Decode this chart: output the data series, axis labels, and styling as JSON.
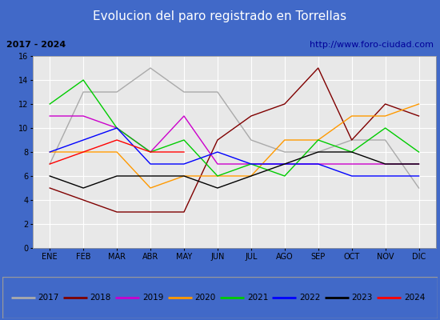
{
  "title": "Evolucion del paro registrado en Torrellas",
  "subtitle_left": "2017 - 2024",
  "subtitle_right": "http://www.foro-ciudad.com",
  "months": [
    "ENE",
    "FEB",
    "MAR",
    "ABR",
    "MAY",
    "JUN",
    "JUL",
    "AGO",
    "SEP",
    "OCT",
    "NOV",
    "DIC"
  ],
  "ylim": [
    0,
    16
  ],
  "yticks": [
    0,
    2,
    4,
    6,
    8,
    10,
    12,
    14,
    16
  ],
  "series": {
    "2017": {
      "color": "#aaaaaa",
      "values": [
        7,
        13,
        13,
        15,
        13,
        13,
        9,
        8,
        8,
        9,
        9,
        5
      ]
    },
    "2018": {
      "color": "#800000",
      "values": [
        5,
        4,
        3,
        3,
        3,
        9,
        11,
        12,
        15,
        9,
        12,
        11
      ]
    },
    "2019": {
      "color": "#cc00cc",
      "values": [
        11,
        11,
        10,
        8,
        11,
        7,
        7,
        7,
        7,
        7,
        7,
        7
      ]
    },
    "2020": {
      "color": "#ff9900",
      "values": [
        8,
        8,
        8,
        5,
        6,
        6,
        6,
        9,
        9,
        11,
        11,
        12
      ]
    },
    "2021": {
      "color": "#00cc00",
      "values": [
        12,
        14,
        10,
        8,
        9,
        6,
        7,
        6,
        9,
        8,
        10,
        8
      ]
    },
    "2022": {
      "color": "#0000ff",
      "values": [
        8,
        9,
        10,
        7,
        7,
        8,
        7,
        7,
        7,
        6,
        6,
        6
      ]
    },
    "2023": {
      "color": "#000000",
      "values": [
        6,
        5,
        6,
        6,
        6,
        5,
        6,
        7,
        8,
        8,
        7,
        7
      ]
    },
    "2024": {
      "color": "#ff0000",
      "values": [
        7,
        8,
        9,
        8,
        8,
        null,
        null,
        null,
        null,
        null,
        null,
        null
      ]
    }
  },
  "title_bg_color": "#4169c8",
  "title_text_color": "#ffffff",
  "subtitle_bg_color": "#d8d8d8",
  "plot_bg_color": "#e8e8e8",
  "legend_bg_color": "#e0e0e0",
  "grid_color": "#ffffff",
  "border_color": "#4169c8"
}
